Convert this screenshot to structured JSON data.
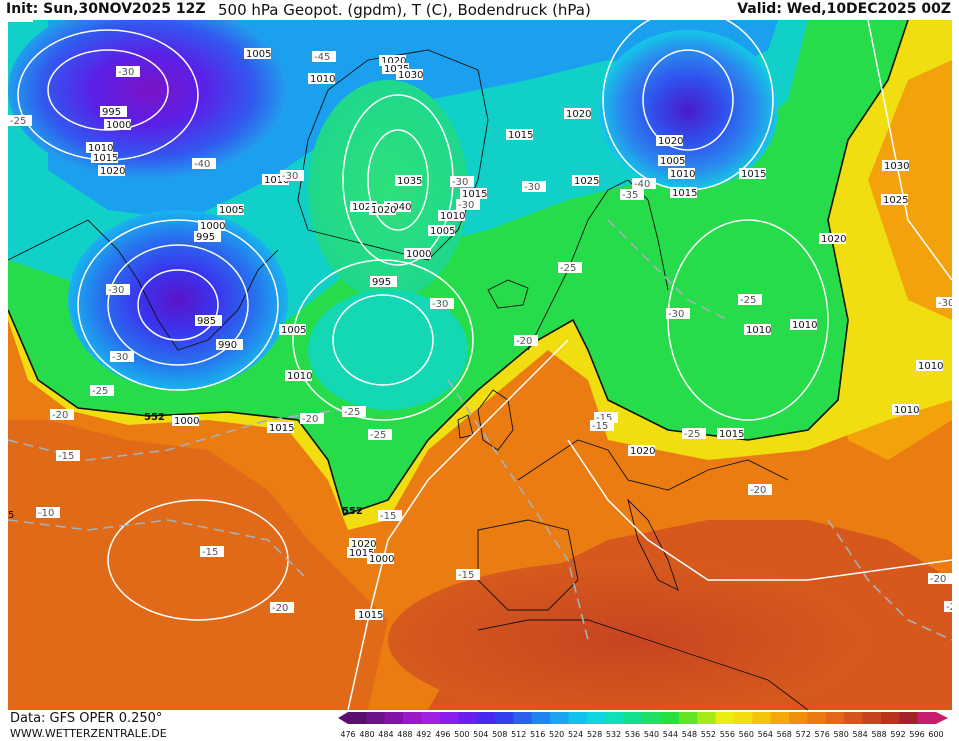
{
  "header": {
    "init": "Init: Sun,30NOV2025 12Z",
    "title": "500 hPa Geopot. (gpdm), T (C), Bodendruck (hPa)",
    "valid": "Valid: Wed,10DEC2025 00Z"
  },
  "footer": {
    "data_source": "Data: GFS OPER 0.250°",
    "website": "WWW.WETTERZENTRALE.DE"
  },
  "colorbar": {
    "ticks": [
      "476",
      "480",
      "484",
      "488",
      "492",
      "496",
      "500",
      "504",
      "508",
      "512",
      "516",
      "520",
      "524",
      "528",
      "532",
      "536",
      "540",
      "544",
      "548",
      "552",
      "556",
      "560",
      "564",
      "568",
      "572",
      "576",
      "580",
      "584",
      "588",
      "592",
      "596",
      "600"
    ],
    "colors": [
      "#5a0f6e",
      "#6e128a",
      "#8512a8",
      "#9a18c6",
      "#a020e6",
      "#8a1eef",
      "#6a1ef0",
      "#4a28ee",
      "#3040f0",
      "#2a62ef",
      "#2284ee",
      "#1aa4ee",
      "#10c2ee",
      "#10d6e0",
      "#10e0b8",
      "#12e08c",
      "#1ee064",
      "#26e040",
      "#60e428",
      "#a6ea18",
      "#e8ef10",
      "#f2de0e",
      "#f4c40c",
      "#f4a80c",
      "#f0900e",
      "#ea7a12",
      "#e06818",
      "#d4561c",
      "#c8441e",
      "#b83220",
      "#a02428",
      "#c81e6e"
    ]
  },
  "map_labels": {
    "isobars": [
      "1005",
      "1010",
      "995",
      "1000",
      "1010",
      "1015",
      "1020",
      "1010",
      "1005",
      "1000",
      "995",
      "985",
      "990",
      "1005",
      "1010",
      "1000",
      "1015",
      "1020",
      "1025",
      "1030",
      "1035",
      "1040",
      "1025",
      "1020",
      "1015",
      "1010",
      "1005",
      "1000",
      "995",
      "1015",
      "1020",
      "1025",
      "1020",
      "1015",
      "1005",
      "1010",
      "1015",
      "1015",
      "1030",
      "1025",
      "1020",
      "1010",
      "1010",
      "1010",
      "1010",
      "1015",
      "1020",
      "1015",
      "1020",
      "1000",
      "1005",
      "1010",
      "1015",
      "1015"
    ],
    "temperatures": [
      "-30",
      "-25",
      "-40",
      "-30",
      "-45",
      "-30",
      "-30",
      "-25",
      "-15",
      "-20",
      "-10",
      "-15",
      "-20",
      "-30",
      "-25",
      "-30",
      "-25",
      "-20",
      "-15",
      "-15",
      "-15",
      "-20",
      "-25",
      "-30",
      "-35",
      "-40",
      "-30",
      "-25",
      "-30",
      "-20",
      "-25",
      "-20",
      "-20",
      "-15",
      "-30"
    ],
    "heights": [
      "552",
      "552"
    ],
    "edge_tag": "5"
  }
}
